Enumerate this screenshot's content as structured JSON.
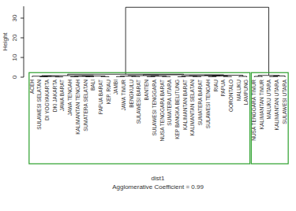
{
  "chart_data": {
    "type": "dendrogram",
    "y_label": "Height",
    "x_label": "dist1",
    "subtitle": "Agglomerative Coefficient = 0.99",
    "labels": [
      "ACEH",
      "SULAWESI SELATAN",
      "DI YOGYAKARTA",
      "DKI JAKARTA",
      "JAWA BARAT",
      "JAWA TENGAH",
      "KALIMANTAN TENGAH",
      "SUMATERA SELATAN",
      "BALI",
      "PAPUA BARAT",
      "KEP. RIAU",
      "JAMBI",
      "JAWA TIMUR",
      "BENGKULU",
      "SULAWESI BARAT",
      "BANTEN",
      "SULAWESI TENGGARA",
      "NUSA TENGGARA BARAT",
      "SUMATERA UTARA",
      "KEP BANGKA BELITUNG",
      "KALIMANTAN BARAT",
      "KALIMANTAN SELATAN",
      "SUMATERA BARAT",
      "SULAWESI TENGAH",
      "RIAU",
      "PAPUA",
      "GORONTALO",
      "MALUKU",
      "LAMPUNG",
      "NUSA TENGGARA TIMUR",
      "KALIMANTAN TIMUR",
      "MALUKU UTARA",
      "KALIMANTAN UTARA",
      "SULAWESI UTARA"
    ],
    "merge": [
      [
        -2,
        -3
      ],
      [
        -4,
        -5
      ],
      [
        1,
        2
      ],
      [
        -1,
        3
      ],
      [
        -6,
        -7
      ],
      [
        -8,
        -9
      ],
      [
        5,
        6
      ],
      [
        -10,
        -11
      ],
      [
        7,
        8
      ],
      [
        4,
        9
      ],
      [
        -12,
        -13
      ],
      [
        -14,
        -15
      ],
      [
        11,
        12
      ],
      [
        -16,
        -17
      ],
      [
        -18,
        -19
      ],
      [
        14,
        15
      ],
      [
        13,
        16
      ],
      [
        -20,
        -21
      ],
      [
        -22,
        -23
      ],
      [
        18,
        19
      ],
      [
        -24,
        -25
      ],
      [
        -26,
        -27
      ],
      [
        21,
        22
      ],
      [
        20,
        23
      ],
      [
        -28,
        -29
      ],
      [
        24,
        25
      ],
      [
        17,
        26
      ],
      [
        10,
        27
      ],
      [
        -30,
        -31
      ],
      [
        -32,
        -33
      ],
      [
        30,
        -34
      ],
      [
        29,
        31
      ],
      [
        28,
        32
      ]
    ],
    "height": [
      0.2,
      0.15,
      0.35,
      0.5,
      0.2,
      0.25,
      0.4,
      0.3,
      0.6,
      0.8,
      0.3,
      0.35,
      0.55,
      0.25,
      0.3,
      0.5,
      0.8,
      0.2,
      0.3,
      0.5,
      0.25,
      0.3,
      0.55,
      0.75,
      0.4,
      1.0,
      1.2,
      1.5,
      0.4,
      0.3,
      0.6,
      0.9,
      35.5
    ],
    "cluster_sizes": [
      29,
      5
    ],
    "color": "#000000",
    "cluster_color": "#2ca02c",
    "ylim": [
      0,
      36
    ],
    "yticks": [
      0,
      10,
      20,
      30
    ]
  }
}
